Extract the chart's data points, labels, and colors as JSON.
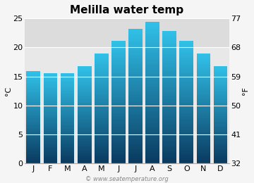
{
  "title": "Melilla water temp",
  "months": [
    "J",
    "F",
    "M",
    "A",
    "M",
    "J",
    "J",
    "A",
    "S",
    "O",
    "N",
    "D"
  ],
  "values_c": [
    15.9,
    15.5,
    15.6,
    16.7,
    18.9,
    21.1,
    23.2,
    24.4,
    22.8,
    21.1,
    18.9,
    16.8
  ],
  "ylim_c": [
    0,
    25
  ],
  "yticks_c": [
    0,
    5,
    10,
    15,
    20,
    25
  ],
  "yticks_f": [
    32,
    41,
    50,
    59,
    68,
    77
  ],
  "ylabel_left": "°C",
  "ylabel_right": "°F",
  "bar_color_top": "#30c0e8",
  "bar_color_bottom": "#0a3a60",
  "bg_upper": "#dcdcdc",
  "bg_lower": "#e8e8e8",
  "bg_split": 20,
  "background_color": "#f5f5f5",
  "grid_color": "#ffffff",
  "watermark": "© www.seatemperature.org",
  "title_fontsize": 11,
  "axis_fontsize": 8,
  "label_fontsize": 8
}
